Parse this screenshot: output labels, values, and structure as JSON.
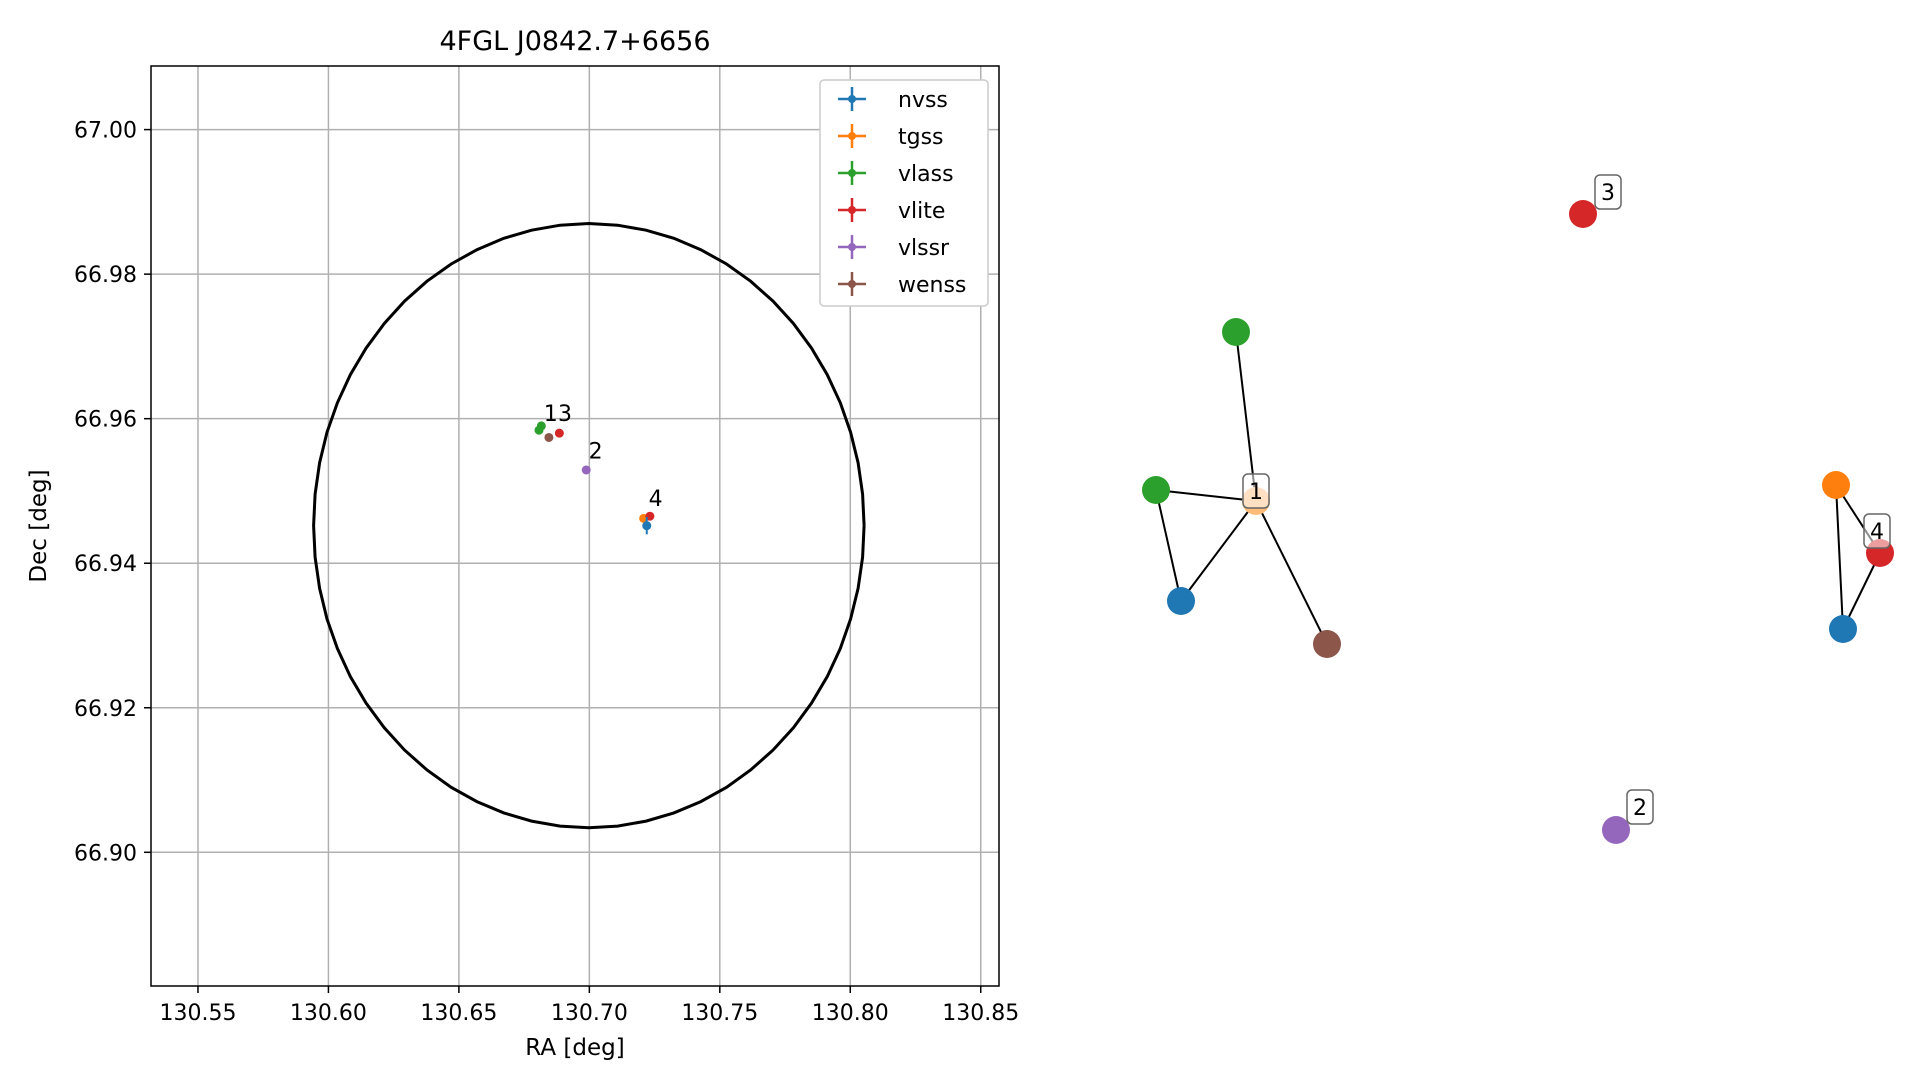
{
  "chart_data": [
    {
      "type": "scatter",
      "title": "4FGL J0842.7+6656",
      "xlabel": "RA [deg]",
      "ylabel": "Dec [deg]",
      "xlim": [
        130.532,
        130.857
      ],
      "ylim": [
        66.8815,
        67.0088
      ],
      "x_ticks": [
        "130.55",
        "130.60",
        "130.65",
        "130.70",
        "130.75",
        "130.80",
        "130.85"
      ],
      "x_tick_values": [
        130.55,
        130.6,
        130.65,
        130.7,
        130.75,
        130.8,
        130.85
      ],
      "y_ticks": [
        "66.90",
        "66.92",
        "66.94",
        "66.96",
        "66.98",
        "67.00"
      ],
      "y_tick_values": [
        66.9,
        66.92,
        66.94,
        66.96,
        66.98,
        67.0
      ],
      "grid": true,
      "legend_position": "top-right",
      "legend": [
        {
          "name": "nvss",
          "color": "#1f77b4"
        },
        {
          "name": "tgss",
          "color": "#ff7f0e"
        },
        {
          "name": "vlass",
          "color": "#2ca02c"
        },
        {
          "name": "vlite",
          "color": "#d62728"
        },
        {
          "name": "vlssr",
          "color": "#9467bd"
        },
        {
          "name": "wenss",
          "color": "#8c564b"
        }
      ],
      "ellipse": {
        "center_ra": 130.6998,
        "center_dec": 66.9452,
        "semi_ra": 0.1055,
        "semi_dec": 0.0418
      },
      "points": [
        {
          "survey": "vlass",
          "ra": 130.6807,
          "dec": 66.9584,
          "color": "#2ca02c"
        },
        {
          "survey": "vlass",
          "ra": 130.6816,
          "dec": 66.959,
          "color": "#2ca02c"
        },
        {
          "survey": "wenss",
          "ra": 130.6845,
          "dec": 66.9574,
          "color": "#8c564b"
        },
        {
          "survey": "vlite",
          "ra": 130.6885,
          "dec": 66.958,
          "color": "#d62728"
        },
        {
          "survey": "vlssr",
          "ra": 130.6988,
          "dec": 66.9529,
          "color": "#9467bd"
        },
        {
          "survey": "tgss",
          "ra": 130.7208,
          "dec": 66.9462,
          "color": "#ff7f0e"
        },
        {
          "survey": "vlite",
          "ra": 130.7232,
          "dec": 66.9465,
          "color": "#d62728"
        },
        {
          "survey": "nvss",
          "ra": 130.722,
          "dec": 66.9452,
          "color": "#1f77b4",
          "dec_err": 0.0012
        }
      ],
      "group_labels": [
        {
          "text": "1",
          "ra": 130.6825,
          "dec": 66.9597
        },
        {
          "text": "3",
          "ra": 130.688,
          "dec": 66.9597
        },
        {
          "text": "2",
          "ra": 130.6997,
          "dec": 66.9545
        },
        {
          "text": "4",
          "ra": 130.7227,
          "dec": 66.9479
        }
      ]
    },
    {
      "type": "network",
      "nodes": [
        {
          "id": "a",
          "survey": "vlass",
          "color": "#2ca02c"
        },
        {
          "id": "b",
          "survey": "vlass",
          "color": "#2ca02c"
        },
        {
          "id": "c",
          "survey": "tgss",
          "color": "#ffbb78",
          "label": "1"
        },
        {
          "id": "d",
          "survey": "nvss",
          "color": "#1f77b4"
        },
        {
          "id": "e",
          "survey": "wenss",
          "color": "#8c564b"
        },
        {
          "id": "f",
          "survey": "vlite",
          "color": "#d62728",
          "label": "3"
        },
        {
          "id": "g",
          "survey": "vlssr",
          "color": "#9467bd",
          "label": "2"
        },
        {
          "id": "h",
          "survey": "tgss",
          "color": "#ff7f0e"
        },
        {
          "id": "i",
          "survey": "vlite",
          "color": "#d62728",
          "label": "4"
        },
        {
          "id": "j",
          "survey": "nvss",
          "color": "#1f77b4"
        }
      ],
      "edges": [
        [
          "a",
          "c"
        ],
        [
          "b",
          "c"
        ],
        [
          "b",
          "d"
        ],
        [
          "d",
          "c"
        ],
        [
          "c",
          "e"
        ],
        [
          "h",
          "i"
        ],
        [
          "h",
          "j"
        ],
        [
          "i",
          "j"
        ]
      ]
    }
  ]
}
